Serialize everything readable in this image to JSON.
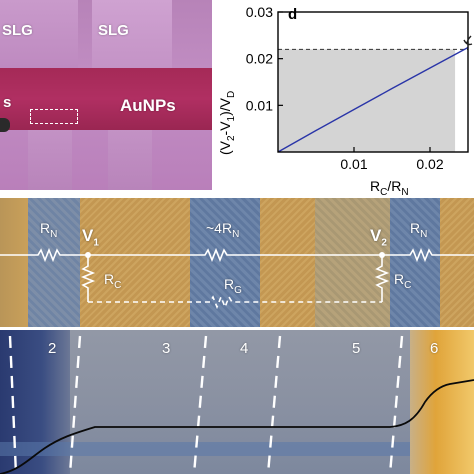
{
  "optical": {
    "labels": {
      "slg_left": "SLG",
      "slg_right": "SLG",
      "s_left": "s",
      "aunps": "AuNPs"
    },
    "colors": {
      "substrate": "#c08cc2",
      "stripe": "#a82c5a"
    }
  },
  "chart_data": {
    "type": "line",
    "panel_label": "d",
    "xlabel_main": "R",
    "xlabel_sub1": "C",
    "xlabel_sep": "/R",
    "xlabel_sub2": "N",
    "ylabel": "(V2-V1)/VD",
    "x_ticks": [
      "0.01",
      "0.02"
    ],
    "y_ticks": [
      "0.01",
      "0.02",
      "0.03"
    ],
    "xlim": [
      0,
      0.025
    ],
    "ylim": [
      0,
      0.03
    ],
    "series": [
      {
        "x": [
          0,
          0.005,
          0.01,
          0.015,
          0.02,
          0.025
        ],
        "y": [
          0,
          0.0046,
          0.0091,
          0.0136,
          0.018,
          0.0224
        ]
      }
    ],
    "reference_y": 0.022,
    "shaded_region_x": [
      0,
      0.0233
    ],
    "line_color": "#2a35a8",
    "shade_color": "#d4d4d4"
  },
  "kpfm": {
    "labels": {
      "rn_left": "R",
      "rn_left_sub": "N",
      "v1": "V",
      "v1_sub": "1",
      "four_rn": "~4R",
      "four_rn_sub": "N",
      "v2": "V",
      "v2_sub": "2",
      "rn_right": "R",
      "rn_right_sub": "N",
      "rc_left": "R",
      "rc_left_sub": "C",
      "rg": "R",
      "rg_sub": "G",
      "rc_right": "R",
      "rc_right_sub": "C"
    },
    "colors": {
      "gold": "#c9a05a",
      "blue": "#6c86a8"
    }
  },
  "potential_map": {
    "segments": [
      "2",
      "3",
      "4",
      "5",
      "6"
    ],
    "colors": {
      "gray": "#8f96a6",
      "navy": "#23366f",
      "orange": "#e0a43a"
    }
  }
}
